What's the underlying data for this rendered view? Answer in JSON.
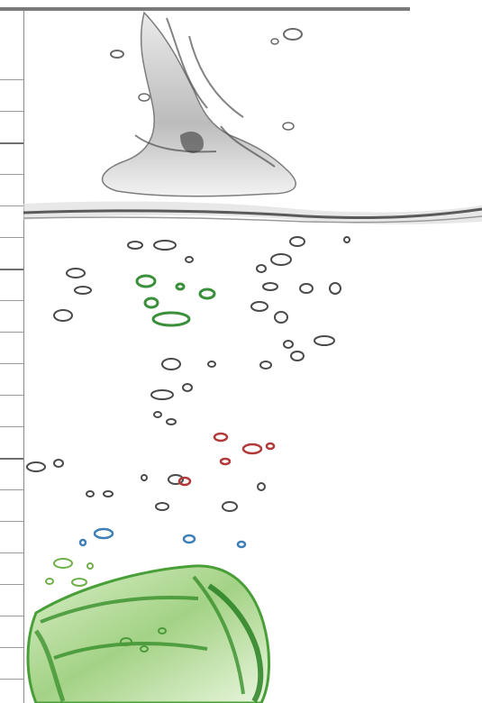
{
  "palette": {
    "rule": "#7a7a7a",
    "water": "#6b6b6b",
    "ice": "#3f9a2e",
    "ice_light": "#a9d58f",
    "bubble_dark": "#4a4a4a",
    "bubble_green": "#3a8f3a",
    "bubble_red": "#b23a3a",
    "bubble_blue": "#3f7fb8"
  },
  "icons": {
    "splash": "water-splash-icon",
    "waterline": "water-surface-icon",
    "bubbles": "bubble-icon",
    "ice": "ice-cube-icon"
  }
}
